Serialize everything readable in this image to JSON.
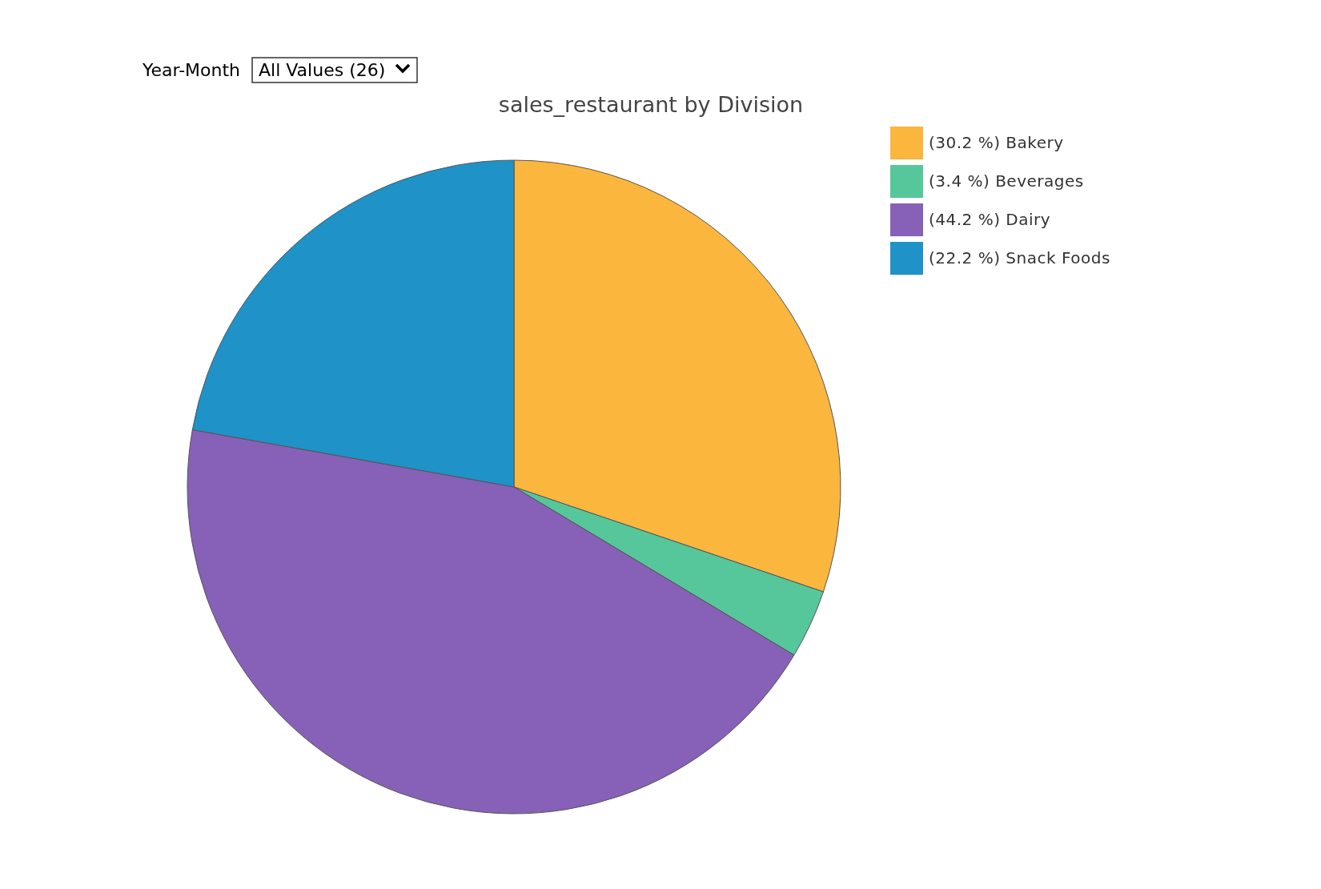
{
  "chart_data": {
    "type": "pie",
    "title": "sales_restaurant by Division",
    "categories": [
      "Bakery",
      "Beverages",
      "Dairy",
      "Snack Foods"
    ],
    "values": [
      30.2,
      3.4,
      44.2,
      22.2
    ],
    "value_labels": [
      "(30.2 %)",
      "(3.4 %)",
      "(44.2 %)",
      "(22.2 %)"
    ],
    "colors": [
      "#fbb63e",
      "#56c79a",
      "#8661b7",
      "#1f92c7"
    ],
    "legend": "top right",
    "annotations": [
      "Year-Month",
      "All Values (26)"
    ]
  }
}
